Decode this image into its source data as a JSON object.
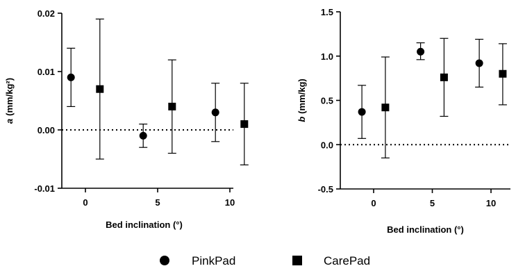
{
  "chart_data": [
    {
      "type": "scatter",
      "xlabel": "Bed inclination (°)",
      "ylabel": "(mm/kg²)",
      "ylabel_prefix": "a",
      "x_ticks": [
        "0",
        "5",
        "10"
      ],
      "y_ticks": [
        "0.02",
        "0.01",
        "0.00",
        "-0.01"
      ],
      "ylim": [
        -0.01,
        0.02
      ],
      "reference_line": 0,
      "series": [
        {
          "name": "PinkPad",
          "marker": "circle",
          "points": [
            {
              "x": -1,
              "y": 0.009,
              "err_low": 0.004,
              "err_high": 0.014
            },
            {
              "x": 4,
              "y": -0.001,
              "err_low": -0.003,
              "err_high": 0.001
            },
            {
              "x": 9,
              "y": 0.003,
              "err_low": -0.002,
              "err_high": 0.008
            }
          ]
        },
        {
          "name": "CarePad",
          "marker": "square",
          "points": [
            {
              "x": 1,
              "y": 0.007,
              "err_low": -0.005,
              "err_high": 0.019
            },
            {
              "x": 6,
              "y": 0.004,
              "err_low": -0.004,
              "err_high": 0.012
            },
            {
              "x": 11,
              "y": 0.001,
              "err_low": -0.006,
              "err_high": 0.008
            }
          ]
        }
      ]
    },
    {
      "type": "scatter",
      "xlabel": "Bed inclination (°)",
      "ylabel": "(mm/kg)",
      "ylabel_prefix": "b",
      "x_ticks": [
        "0",
        "5",
        "10"
      ],
      "y_ticks": [
        "1.5",
        "1.0",
        "0.5",
        "0.0",
        "-0.5"
      ],
      "ylim": [
        -0.5,
        1.5
      ],
      "reference_line": 0,
      "series": [
        {
          "name": "PinkPad",
          "marker": "circle",
          "points": [
            {
              "x": -1,
              "y": 0.37,
              "err_low": 0.07,
              "err_high": 0.67
            },
            {
              "x": 4,
              "y": 1.05,
              "err_low": 0.96,
              "err_high": 1.15
            },
            {
              "x": 9,
              "y": 0.92,
              "err_low": 0.65,
              "err_high": 1.19
            }
          ]
        },
        {
          "name": "CarePad",
          "marker": "square",
          "points": [
            {
              "x": 1,
              "y": 0.42,
              "err_low": -0.15,
              "err_high": 0.99
            },
            {
              "x": 6,
              "y": 0.76,
              "err_low": 0.32,
              "err_high": 1.2
            },
            {
              "x": 11,
              "y": 0.8,
              "err_low": 0.45,
              "err_high": 1.14
            }
          ]
        }
      ]
    }
  ],
  "legend": {
    "items": [
      {
        "label": "PinkPad",
        "marker": "circle"
      },
      {
        "label": "CarePad",
        "marker": "square"
      }
    ]
  }
}
